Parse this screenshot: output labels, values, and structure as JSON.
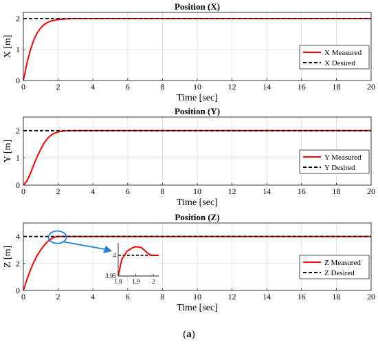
{
  "caption": {
    "open": "(",
    "letter": "a",
    "close": ")"
  },
  "colors": {
    "measured": "#ff0000",
    "desired": "#000000",
    "annotation": "#1f7fd6"
  },
  "chart_data": [
    {
      "type": "line",
      "title": "Position (X)",
      "xlabel": "Time [sec]",
      "ylabel": "X [m]",
      "xlim": [
        0,
        20
      ],
      "ylim": [
        0,
        2.2
      ],
      "xticks": [
        0,
        2,
        4,
        6,
        8,
        10,
        12,
        14,
        16,
        18,
        20
      ],
      "yticks": [
        0,
        1,
        2
      ],
      "grid": true,
      "legend_position": "right",
      "series": [
        {
          "name": "X Measured",
          "style": "solid",
          "color": "#ff0000",
          "x": [
            0,
            0.2,
            0.4,
            0.6,
            0.8,
            1.0,
            1.2,
            1.4,
            1.6,
            1.8,
            2.0,
            2.4,
            3.0,
            20
          ],
          "y": [
            0,
            0.55,
            0.98,
            1.31,
            1.54,
            1.7,
            1.81,
            1.88,
            1.92,
            1.95,
            1.97,
            1.99,
            2.0,
            2.0
          ]
        },
        {
          "name": "X Desired",
          "style": "dashed",
          "color": "#000000",
          "x": [
            0,
            20
          ],
          "y": [
            2,
            2
          ]
        }
      ]
    },
    {
      "type": "line",
      "title": "Position (Y)",
      "xlabel": "Time [sec]",
      "ylabel": "Y [m]",
      "xlim": [
        0,
        20
      ],
      "ylim": [
        0,
        2.5
      ],
      "xticks": [
        0,
        2,
        4,
        6,
        8,
        10,
        12,
        14,
        16,
        18,
        20
      ],
      "yticks": [
        0,
        1,
        2
      ],
      "grid": true,
      "legend_position": "right",
      "series": [
        {
          "name": "Y Measured",
          "style": "solid",
          "color": "#ff0000",
          "x": [
            0,
            0.2,
            0.4,
            0.6,
            0.8,
            1.0,
            1.2,
            1.4,
            1.6,
            1.8,
            2.0,
            2.2,
            2.5,
            3.0,
            20
          ],
          "y": [
            0,
            0.15,
            0.42,
            0.75,
            1.05,
            1.32,
            1.55,
            1.72,
            1.84,
            1.91,
            1.95,
            1.98,
            1.995,
            2.0,
            2.0
          ]
        },
        {
          "name": "Y Desired",
          "style": "dashed",
          "color": "#000000",
          "x": [
            0,
            20
          ],
          "y": [
            2,
            2
          ]
        }
      ]
    },
    {
      "type": "line",
      "title": "Position (Z)",
      "xlabel": "Time [sec]",
      "ylabel": "Z [m]",
      "xlim": [
        0,
        20
      ],
      "ylim": [
        0,
        5
      ],
      "xticks": [
        0,
        2,
        4,
        6,
        8,
        10,
        12,
        14,
        16,
        18,
        20
      ],
      "yticks": [
        0,
        2,
        4
      ],
      "grid": true,
      "legend_position": "right",
      "series": [
        {
          "name": "Z Measured",
          "style": "solid",
          "color": "#ff0000",
          "x": [
            0,
            0.2,
            0.4,
            0.6,
            0.8,
            1.0,
            1.2,
            1.4,
            1.6,
            1.8,
            2.0,
            20
          ],
          "y": [
            0,
            0.8,
            1.5,
            2.1,
            2.6,
            3.0,
            3.35,
            3.62,
            3.82,
            3.96,
            4.0,
            4.0
          ]
        },
        {
          "name": "Z Desired",
          "style": "dashed",
          "color": "#000000",
          "x": [
            0,
            20
          ],
          "y": [
            4,
            4
          ]
        }
      ],
      "inset": {
        "xlim": [
          1.8,
          2.03
        ],
        "ylim": [
          3.95,
          4.03
        ],
        "xticks": [
          1.8,
          1.9,
          2
        ],
        "yticks": [
          3.95,
          4
        ],
        "measured": {
          "x": [
            1.8,
            1.82,
            1.85,
            1.88,
            1.9,
            1.93,
            1.95,
            1.97,
            1.99,
            2.0,
            2.03
          ],
          "y": [
            3.95,
            3.99,
            4.01,
            4.018,
            4.021,
            4.019,
            4.012,
            4.004,
            4.0,
            4.0,
            4.0
          ]
        },
        "desired": {
          "x": [
            1.8,
            2.03
          ],
          "y": [
            4,
            4
          ]
        }
      }
    }
  ]
}
